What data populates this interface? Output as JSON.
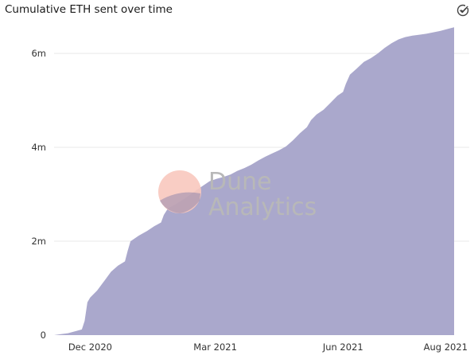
{
  "title": "Cumulative ETH sent over time",
  "watermark": {
    "line1": "Dune",
    "line2": "Analytics"
  },
  "colors": {
    "area": "#aaa8cc",
    "grid": "#e9e9e9",
    "logo": "#f8c8be",
    "text": "#1a1a1a"
  },
  "icons": {
    "status": "check-circle-icon"
  },
  "chart_data": {
    "type": "area",
    "title": "Cumulative ETH sent over time",
    "xlabel": "",
    "ylabel": "",
    "x_ticks": [
      "Dec 2020",
      "Mar 2021",
      "Jun 2021",
      "Aug 2021"
    ],
    "y_ticks": [
      "0",
      "2m",
      "4m",
      "6m"
    ],
    "ylim": [
      0,
      6800000
    ],
    "xlim": [
      "2020-11-05",
      "2021-08-20"
    ],
    "grid": true,
    "series": [
      {
        "x": [
          "2020-11-05",
          "2020-11-10",
          "2020-11-15",
          "2020-11-20",
          "2020-11-25",
          "2020-11-27",
          "2020-11-29",
          "2020-12-01",
          "2020-12-06",
          "2020-12-11",
          "2020-12-16",
          "2020-12-21",
          "2020-12-26",
          "2020-12-28",
          "2020-12-30",
          "2021-01-05",
          "2021-01-11",
          "2021-01-16",
          "2021-01-21",
          "2021-01-23",
          "2021-01-26",
          "2021-01-31",
          "2021-02-05",
          "2021-02-10",
          "2021-02-15",
          "2021-02-20",
          "2021-02-25",
          "2021-03-02",
          "2021-03-07",
          "2021-03-12",
          "2021-03-17",
          "2021-03-22",
          "2021-03-27",
          "2021-04-01",
          "2021-04-06",
          "2021-04-11",
          "2021-04-16",
          "2021-04-21",
          "2021-04-26",
          "2021-05-01",
          "2021-05-06",
          "2021-05-09",
          "2021-05-13",
          "2021-05-18",
          "2021-05-23",
          "2021-05-28",
          "2021-06-01",
          "2021-06-03",
          "2021-06-06",
          "2021-06-11",
          "2021-06-16",
          "2021-06-21",
          "2021-06-26",
          "2021-07-01",
          "2021-07-06",
          "2021-07-11",
          "2021-07-16",
          "2021-07-21",
          "2021-07-26",
          "2021-07-31",
          "2021-08-05",
          "2021-08-10",
          "2021-08-15",
          "2021-08-20"
        ],
        "y": [
          0,
          20000,
          40000,
          80000,
          120000,
          300000,
          700000,
          800000,
          950000,
          1150000,
          1350000,
          1480000,
          1570000,
          1800000,
          2000000,
          2120000,
          2220000,
          2320000,
          2400000,
          2560000,
          2700000,
          2780000,
          2870000,
          2970000,
          3080000,
          3180000,
          3280000,
          3330000,
          3370000,
          3420000,
          3500000,
          3560000,
          3630000,
          3720000,
          3800000,
          3870000,
          3940000,
          4020000,
          4150000,
          4300000,
          4430000,
          4580000,
          4700000,
          4800000,
          4950000,
          5100000,
          5180000,
          5350000,
          5550000,
          5680000,
          5820000,
          5900000,
          6000000,
          6120000,
          6220000,
          6300000,
          6350000,
          6380000,
          6400000,
          6420000,
          6450000,
          6480000,
          6520000,
          6560000
        ]
      }
    ]
  }
}
